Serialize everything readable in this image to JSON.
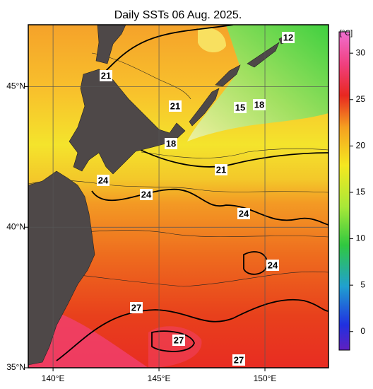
{
  "title": "Daily SSTs 06 Aug. 2025.",
  "map": {
    "lon_ticks": [
      {
        "value": 140,
        "label": "140°E"
      },
      {
        "value": 145,
        "label": "145°E"
      },
      {
        "value": 150,
        "label": "150°E"
      }
    ],
    "lat_ticks": [
      {
        "value": 45,
        "label": "45°N"
      },
      {
        "value": 40,
        "label": "40°N"
      },
      {
        "value": 35,
        "label": "35°N"
      }
    ],
    "lonlim": [
      138.83,
      153
    ],
    "latlim": [
      35,
      47.2
    ],
    "contour_labels": [
      21,
      21,
      18,
      24,
      24,
      21,
      24,
      24,
      27,
      27,
      27,
      12,
      15,
      18
    ]
  },
  "colorbar": {
    "unit": "[°C]",
    "lim": [
      -2,
      32.3
    ],
    "ticks": [
      30,
      25,
      20,
      15,
      10,
      5,
      0
    ]
  }
}
